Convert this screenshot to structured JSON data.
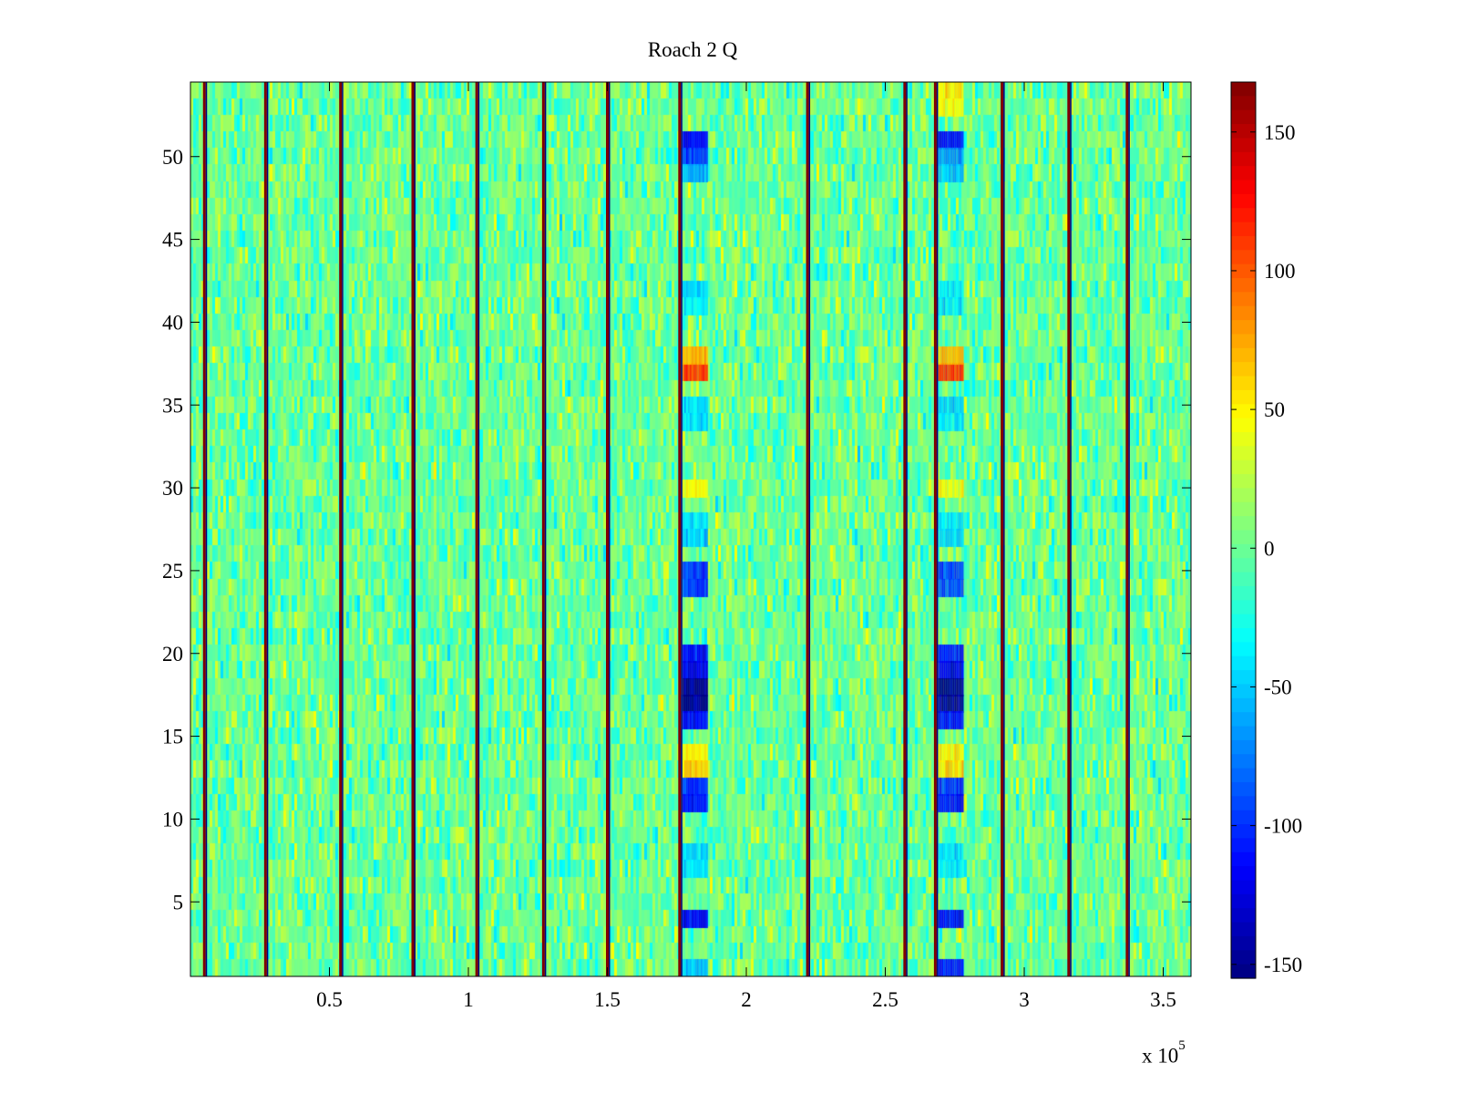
{
  "chart_data": {
    "type": "heatmap",
    "title": "Roach 2 Q",
    "xlabel": "",
    "ylabel": "",
    "x_multiplier_label": "x 10",
    "x_multiplier_exponent": "5",
    "xlim": [
      0,
      3.6
    ],
    "ylim": [
      0.5,
      54.5
    ],
    "x_ticks": [
      0.5,
      1,
      1.5,
      2,
      2.5,
      3,
      3.5
    ],
    "x_tick_labels": [
      "0.5",
      "1",
      "1.5",
      "2",
      "2.5",
      "3",
      "3.5"
    ],
    "y_ticks": [
      5,
      10,
      15,
      20,
      25,
      30,
      35,
      40,
      45,
      50
    ],
    "y_tick_labels": [
      "5",
      "10",
      "15",
      "20",
      "25",
      "30",
      "35",
      "40",
      "45",
      "50"
    ],
    "rows": 54,
    "colormap": "jet",
    "color_range": [
      -155,
      168
    ],
    "colorbar_ticks": [
      150,
      100,
      50,
      0,
      -50,
      -100,
      -150
    ],
    "colorbar_tick_labels": [
      "150",
      "100",
      "50",
      "0",
      "-50",
      "-100",
      "-150"
    ],
    "background_mean": 0,
    "background_spread": 25,
    "spike_columns_x": [
      0.05,
      0.27,
      0.54,
      0.8,
      1.03,
      1.27,
      1.5,
      1.76,
      2.22,
      2.57,
      2.68,
      2.92,
      3.16,
      3.37
    ],
    "spike_value": 168,
    "feature_bands": [
      {
        "x_range": [
          1.77,
          1.86
        ],
        "rows": [
          {
            "y": 37,
            "value": 110
          },
          {
            "y": 38,
            "value": 70
          },
          {
            "y": 51,
            "value": -115
          },
          {
            "y": 50,
            "value": -90
          },
          {
            "y": 49,
            "value": -60
          },
          {
            "y": 42,
            "value": -45
          },
          {
            "y": 41,
            "value": -40
          },
          {
            "y": 35,
            "value": -45
          },
          {
            "y": 34,
            "value": -40
          },
          {
            "y": 30,
            "value": 45
          },
          {
            "y": 28,
            "value": -45
          },
          {
            "y": 27,
            "value": -50
          },
          {
            "y": 25,
            "value": -95
          },
          {
            "y": 24,
            "value": -90
          },
          {
            "y": 20,
            "value": -110
          },
          {
            "y": 19,
            "value": -120
          },
          {
            "y": 18,
            "value": -150
          },
          {
            "y": 17,
            "value": -145
          },
          {
            "y": 16,
            "value": -110
          },
          {
            "y": 14,
            "value": 55
          },
          {
            "y": 13,
            "value": 60
          },
          {
            "y": 12,
            "value": -100
          },
          {
            "y": 11,
            "value": -110
          },
          {
            "y": 8,
            "value": -45
          },
          {
            "y": 7,
            "value": -40
          },
          {
            "y": 4,
            "value": -115
          },
          {
            "y": 1,
            "value": -55
          }
        ]
      },
      {
        "x_range": [
          2.69,
          2.78
        ],
        "rows": [
          {
            "y": 37,
            "value": 110
          },
          {
            "y": 38,
            "value": 70
          },
          {
            "y": 54,
            "value": 50
          },
          {
            "y": 53,
            "value": 45
          },
          {
            "y": 51,
            "value": -115
          },
          {
            "y": 50,
            "value": -70
          },
          {
            "y": 49,
            "value": -55
          },
          {
            "y": 42,
            "value": -45
          },
          {
            "y": 41,
            "value": -40
          },
          {
            "y": 35,
            "value": -45
          },
          {
            "y": 34,
            "value": -40
          },
          {
            "y": 30,
            "value": 45
          },
          {
            "y": 28,
            "value": -45
          },
          {
            "y": 27,
            "value": -50
          },
          {
            "y": 25,
            "value": -95
          },
          {
            "y": 24,
            "value": -90
          },
          {
            "y": 20,
            "value": -110
          },
          {
            "y": 19,
            "value": -120
          },
          {
            "y": 18,
            "value": -150
          },
          {
            "y": 17,
            "value": -145
          },
          {
            "y": 16,
            "value": -110
          },
          {
            "y": 14,
            "value": 55
          },
          {
            "y": 13,
            "value": 60
          },
          {
            "y": 12,
            "value": -100
          },
          {
            "y": 11,
            "value": -110
          },
          {
            "y": 8,
            "value": -45
          },
          {
            "y": 7,
            "value": -40
          },
          {
            "y": 4,
            "value": -115
          },
          {
            "y": 1,
            "value": -110
          }
        ]
      }
    ]
  }
}
